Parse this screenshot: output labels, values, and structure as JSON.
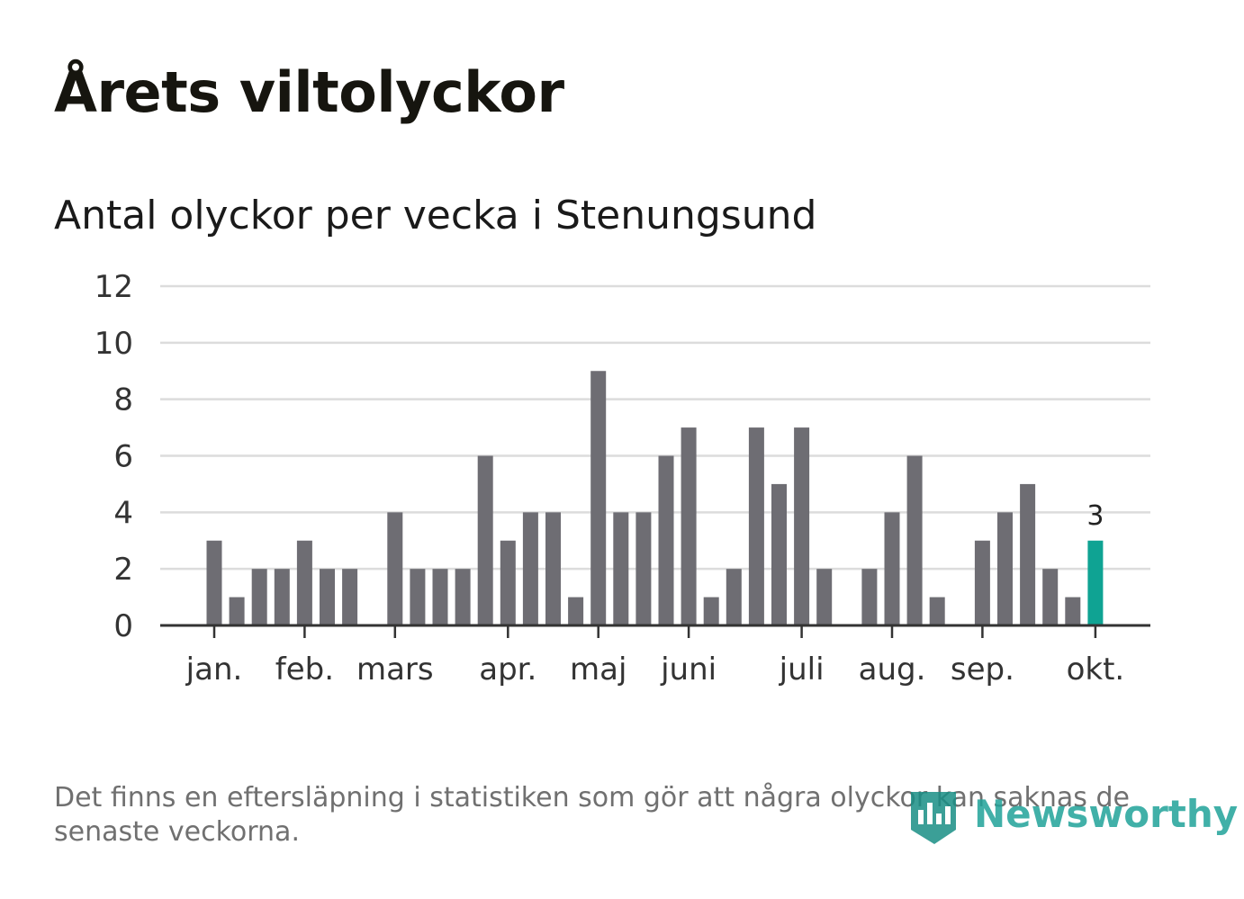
{
  "title": "Årets viltolyckor",
  "subtitle": "Antal olyckor per vecka i Stenungsund",
  "footnote": "Det finns en eftersläpning i statistiken som gör att några olyckor kan saknas de senaste veckorna.",
  "logo": {
    "text": "Newsworthy",
    "icon": "bar-chart-badge-icon"
  },
  "colors": {
    "bar": "#6e6d73",
    "highlight": "#0fa393",
    "grid": "#dcdcdc",
    "axis": "#333333",
    "text": "#333333"
  },
  "chart_data": {
    "type": "bar",
    "ylim": [
      0,
      12
    ],
    "yticks": [
      0,
      2,
      4,
      6,
      8,
      10,
      12
    ],
    "grid": true,
    "weeks": [
      1,
      2,
      3,
      4,
      5,
      6,
      7,
      8,
      9,
      10,
      11,
      12,
      13,
      14,
      15,
      16,
      17,
      18,
      19,
      20,
      21,
      22,
      23,
      24,
      25,
      26,
      27,
      28,
      29,
      30,
      31,
      32,
      33,
      34,
      35,
      36,
      37,
      38,
      39,
      40
    ],
    "values": [
      3,
      1,
      2,
      2,
      3,
      2,
      2,
      0,
      4,
      2,
      2,
      2,
      6,
      3,
      4,
      4,
      1,
      9,
      4,
      4,
      6,
      7,
      1,
      2,
      7,
      5,
      7,
      2,
      0,
      2,
      4,
      6,
      1,
      0,
      3,
      4,
      5,
      2,
      1,
      3
    ],
    "highlight_index": 39,
    "highlight_label": "3",
    "month_ticks": [
      {
        "label": "jan.",
        "week": 1
      },
      {
        "label": "feb.",
        "week": 5
      },
      {
        "label": "mars",
        "week": 9
      },
      {
        "label": "apr.",
        "week": 14
      },
      {
        "label": "maj",
        "week": 18
      },
      {
        "label": "juni",
        "week": 22
      },
      {
        "label": "juli",
        "week": 27
      },
      {
        "label": "aug.",
        "week": 31
      },
      {
        "label": "sep.",
        "week": 35
      },
      {
        "label": "okt.",
        "week": 40
      }
    ]
  }
}
